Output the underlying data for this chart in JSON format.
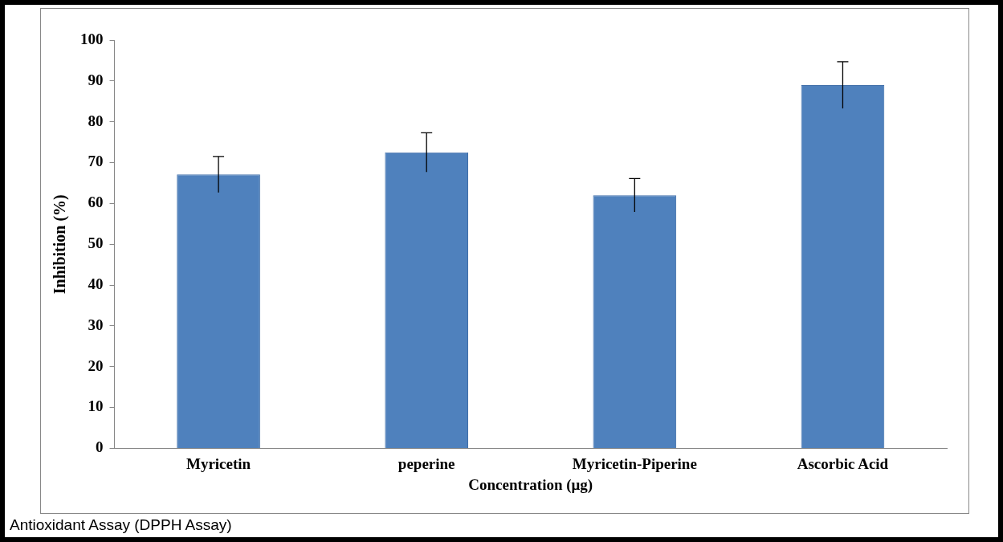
{
  "chart_data": {
    "type": "bar",
    "categories": [
      "Myricetin",
      "peperine",
      "Myricetin-Piperine",
      "Ascorbic Acid"
    ],
    "values": [
      67.1,
      72.5,
      62.0,
      89.0
    ],
    "errors": [
      4.4,
      4.8,
      4.1,
      5.7
    ],
    "color": "#4f81bd",
    "xlabel": "Concentration (μg)",
    "ylabel": "Inhibition (%)",
    "ylim": [
      0,
      100
    ],
    "yticks": [
      0,
      10,
      20,
      30,
      40,
      50,
      60,
      70,
      80,
      90,
      100
    ],
    "grid": false,
    "legend": false,
    "annotations": [
      "Antioxidant Assay (DPPH Assay)"
    ]
  }
}
